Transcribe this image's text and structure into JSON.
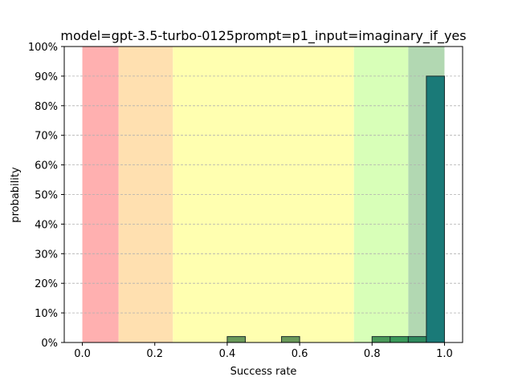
{
  "chart_data": {
    "type": "bar",
    "title": "model=gpt-3.5-turbo-0125prompt=p1_input=imaginary_if_yes",
    "xlabel": "Success rate",
    "ylabel": "probability",
    "xlim": [
      -0.05,
      1.05
    ],
    "ylim": [
      0,
      1.0
    ],
    "x_ticks": [
      0.0,
      0.2,
      0.4,
      0.6,
      0.8,
      1.0
    ],
    "x_tick_labels": [
      "0.0",
      "0.2",
      "0.4",
      "0.6",
      "0.8",
      "1.0"
    ],
    "y_ticks": [
      0,
      0.1,
      0.2,
      0.3,
      0.4,
      0.5,
      0.6,
      0.7,
      0.8,
      0.9,
      1.0
    ],
    "y_tick_labels": [
      "0%",
      "10%",
      "20%",
      "30%",
      "40%",
      "50%",
      "60%",
      "70%",
      "80%",
      "90%",
      "100%"
    ],
    "grid": "horizontal dashed",
    "bands": [
      {
        "from": 0.0,
        "to": 0.1,
        "color": "#ffb0b0"
      },
      {
        "from": 0.1,
        "to": 0.25,
        "color": "#ffe0b0"
      },
      {
        "from": 0.25,
        "to": 0.75,
        "color": "#ffffb0"
      },
      {
        "from": 0.75,
        "to": 0.9,
        "color": "#d8ffb8"
      },
      {
        "from": 0.9,
        "to": 1.0,
        "color": "#b2d8b2"
      }
    ],
    "bars": [
      {
        "x0": 0.4,
        "x1": 0.45,
        "value": 0.02,
        "color": "#6a9a5a"
      },
      {
        "x0": 0.55,
        "x1": 0.6,
        "value": 0.02,
        "color": "#6a9a5a"
      },
      {
        "x0": 0.8,
        "x1": 0.85,
        "value": 0.02,
        "color": "#4a9a5a"
      },
      {
        "x0": 0.85,
        "x1": 0.9,
        "value": 0.02,
        "color": "#3a9a5a"
      },
      {
        "x0": 0.9,
        "x1": 0.95,
        "value": 0.02,
        "color": "#2e8a5e"
      },
      {
        "x0": 0.95,
        "x1": 1.0,
        "value": 0.9,
        "color": "#1a7a78"
      }
    ]
  }
}
